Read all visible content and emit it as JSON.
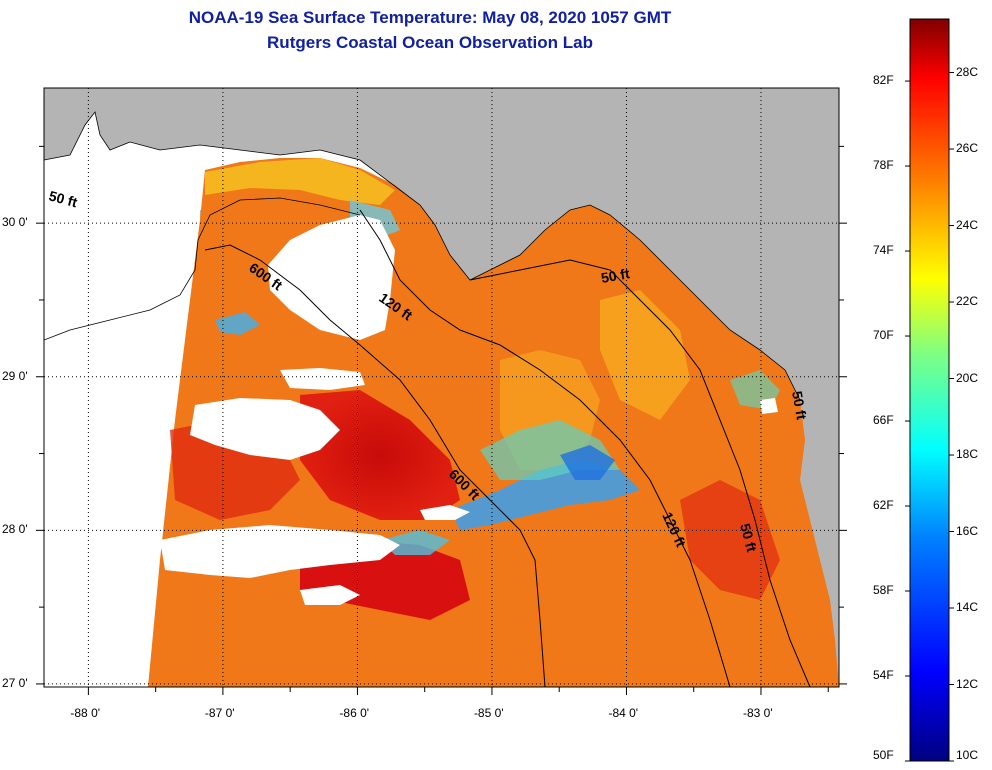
{
  "header": {
    "title": "NOAA-19 Sea Surface Temperature:  May 08, 2020 1057 GMT",
    "subtitle": "Rutgers Coastal Ocean Observation Lab"
  },
  "map": {
    "lat_ticks": [
      "30 0'",
      "29 0'",
      "28 0'",
      "27 0'"
    ],
    "lon_ticks": [
      "-88 0'",
      "-87 0'",
      "-86 0'",
      "-85 0'",
      "-84 0'",
      "-83 0'"
    ],
    "lat_range": [
      26.98,
      30.88
    ],
    "lon_range": [
      -88.33,
      -82.42
    ],
    "depth_labels": [
      "50 ft",
      "600 ft",
      "120 ft",
      "50 ft",
      "600 ft",
      "120 ft",
      "50 ft",
      "50 ft"
    ],
    "colors": {
      "land": "#b4b4b4",
      "no_data": "#ffffff",
      "warm_water": "#f06010",
      "hot_water": "#d81010",
      "cool_water": "#30a0f0"
    }
  },
  "colorbar": {
    "fahrenheit_labels": [
      "82F",
      "78F",
      "74F",
      "70F",
      "66F",
      "62F",
      "58F",
      "54F",
      "50F"
    ],
    "celsius_labels": [
      "28C",
      "26C",
      "24C",
      "22C",
      "20C",
      "18C",
      "16C",
      "14C",
      "12C",
      "10C"
    ],
    "range_c": [
      10,
      29.4
    ],
    "gradient": [
      "#000080",
      "#0000ff",
      "#0080ff",
      "#00ffff",
      "#80ff80",
      "#ffff00",
      "#ff8000",
      "#ff0000",
      "#800000"
    ]
  }
}
